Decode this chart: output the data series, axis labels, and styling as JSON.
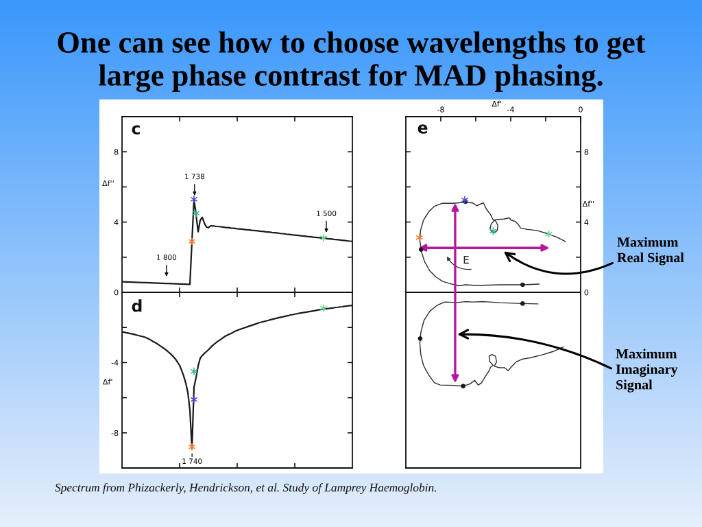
{
  "chart_data": [
    {
      "type": "line",
      "title": "One can see how to choose wavelengths to get\nlarge phase contrast for MAD phasing.",
      "ylabel": "Δf''",
      "categories": [
        null,
        null,
        null,
        null,
        null,
        null,
        null,
        null,
        null,
        null,
        null,
        null,
        null,
        null,
        null,
        null,
        null,
        null,
        null,
        null,
        null,
        null,
        null,
        null,
        null,
        null,
        null,
        null,
        null,
        null,
        null,
        null,
        null,
        null,
        null,
        null,
        null,
        null,
        null,
        null,
        null,
        null,
        null,
        null,
        null,
        null,
        null,
        null,
        null,
        null,
        null,
        null,
        null,
        null,
        null,
        null,
        null,
        null,
        null,
        null,
        null,
        null,
        null,
        null,
        null,
        null,
        null,
        null,
        null,
        null,
        null,
        null,
        null,
        null,
        null,
        null,
        null,
        null,
        null,
        null,
        null,
        null,
        null,
        null,
        null,
        null,
        null,
        null,
        null,
        null,
        null,
        null,
        null,
        null,
        null,
        null,
        null,
        null,
        null,
        null,
        null,
        null,
        null,
        null,
        null,
        null,
        null,
        null,
        null,
        null,
        null,
        null,
        null
      ],
      "ylim": [
        0,
        10
      ],
      "yticks": [
        0,
        {
          "value": 2,
          "label": null
        },
        4,
        {
          "value": 6,
          "label": null
        },
        8
      ],
      "series": [
        {
          "type": "line",
          "color": "#1a1a1a",
          "values": [
            0.6,
            0.6,
            0.59,
            0.59,
            0.58,
            0.58,
            0.57,
            0.57,
            0.56,
            0.56,
            0.55,
            0.55,
            0.55,
            0.54,
            0.54,
            0.53,
            0.53,
            0.52,
            0.52,
            0.51,
            0.51,
            0.5,
            0.5,
            0.5,
            0.49,
            0.49,
            0.48,
            0.48,
            0.47,
            0.47,
            0.46,
            0.46,
            0.45,
            0.45,
            2.9,
            5.3,
            4.4,
            3.45,
            4.1,
            4.27,
            3.95,
            3.72,
            3.68,
            3.78,
            3.78,
            3.77,
            3.75,
            3.74,
            3.73,
            3.72,
            3.7,
            3.69,
            3.68,
            3.66,
            3.65,
            3.64,
            3.62,
            3.61,
            3.6,
            3.59,
            3.57,
            3.56,
            3.55,
            3.53,
            3.52,
            3.51,
            3.5,
            3.48,
            3.47,
            3.46,
            3.44,
            3.43,
            3.42,
            3.4,
            3.39,
            3.38,
            3.37,
            3.35,
            3.34,
            3.33,
            3.31,
            3.3,
            3.29,
            3.27,
            3.26,
            3.25,
            3.24,
            3.22,
            3.21,
            3.2,
            3.18,
            3.17,
            3.16,
            3.14,
            3.13,
            3.12,
            3.11,
            3.09,
            3.08,
            3.07,
            3.05,
            3.04,
            3.03,
            3.01,
            3.0,
            2.99,
            2.98,
            2.96,
            2.95,
            2.94,
            2.92,
            2.91,
            2.9
          ]
        },
        {
          "type": "scatter",
          "marker": "cross",
          "color": "#ff7a2a",
          "values": [
            null,
            null,
            null,
            null,
            null,
            null,
            null,
            null,
            null,
            null,
            null,
            null,
            null,
            null,
            null,
            null,
            null,
            null,
            null,
            null,
            null,
            null,
            null,
            null,
            null,
            null,
            null,
            null,
            null,
            null,
            null,
            null,
            null,
            null,
            2.9,
            null,
            null,
            null,
            null,
            null,
            null,
            null,
            null,
            null,
            null,
            null,
            null,
            null,
            null,
            null,
            null,
            null,
            null,
            null,
            null,
            null,
            null,
            null,
            null,
            null,
            null,
            null,
            null,
            null,
            null,
            null,
            null,
            null,
            null,
            null,
            null,
            null,
            null,
            null,
            null,
            null,
            null,
            null,
            null,
            null,
            null,
            null,
            null,
            null,
            null,
            null,
            null,
            null,
            null,
            null,
            null,
            null,
            null,
            null,
            null,
            null,
            null,
            null,
            null,
            null,
            null,
            null,
            null,
            null,
            null,
            null,
            null,
            null,
            null,
            null,
            null,
            null,
            null
          ]
        },
        {
          "type": "scatter",
          "marker": "cross",
          "color": "#4b4bd8",
          "values": [
            null,
            null,
            null,
            null,
            null,
            null,
            null,
            null,
            null,
            null,
            null,
            null,
            null,
            null,
            null,
            null,
            null,
            null,
            null,
            null,
            null,
            null,
            null,
            null,
            null,
            null,
            null,
            null,
            null,
            null,
            null,
            null,
            null,
            null,
            null,
            5.3,
            null,
            null,
            null,
            null,
            null,
            null,
            null,
            null,
            null,
            null,
            null,
            null,
            null,
            null,
            null,
            null,
            null,
            null,
            null,
            null,
            null,
            null,
            null,
            null,
            null,
            null,
            null,
            null,
            null,
            null,
            null,
            null,
            null,
            null,
            null,
            null,
            null,
            null,
            null,
            null,
            null,
            null,
            null,
            null,
            null,
            null,
            null,
            null,
            null,
            null,
            null,
            null,
            null,
            null,
            null,
            null,
            null,
            null,
            null,
            null,
            null,
            null,
            null,
            null,
            null,
            null,
            null,
            null,
            null,
            null,
            null,
            null,
            null,
            null,
            null,
            null,
            null
          ]
        },
        {
          "type": "scatter",
          "marker": "cross",
          "color": "#2eb87c",
          "values": [
            null,
            null,
            null,
            null,
            null,
            null,
            null,
            null,
            null,
            null,
            null,
            null,
            null,
            null,
            null,
            null,
            null,
            null,
            null,
            null,
            null,
            null,
            null,
            null,
            null,
            null,
            null,
            null,
            null,
            null,
            null,
            null,
            null,
            null,
            null,
            null,
            4.5,
            null,
            null,
            null,
            null,
            null,
            null,
            null,
            null,
            null,
            null,
            null,
            null,
            null,
            null,
            null,
            null,
            null,
            null,
            null,
            null,
            null,
            null,
            null,
            null,
            null,
            null,
            null,
            null,
            null,
            null,
            null,
            null,
            null,
            null,
            null,
            null,
            null,
            null,
            null,
            null,
            null,
            null,
            null,
            null,
            null,
            null,
            null,
            null,
            null,
            null,
            null,
            null,
            null,
            null,
            null,
            null,
            null,
            null,
            null,
            null,
            null,
            null,
            null,
            null,
            null,
            null,
            null,
            null,
            null,
            null,
            null,
            null,
            null,
            null,
            null,
            null
          ]
        },
        {
          "type": "scatter",
          "marker": "cross",
          "color": "#5fd890",
          "values": [
            null,
            null,
            null,
            null,
            null,
            null,
            null,
            null,
            null,
            null,
            null,
            null,
            null,
            null,
            null,
            null,
            null,
            null,
            null,
            null,
            null,
            null,
            null,
            null,
            null,
            null,
            null,
            null,
            null,
            null,
            null,
            null,
            null,
            null,
            null,
            null,
            null,
            null,
            null,
            null,
            null,
            null,
            null,
            null,
            null,
            null,
            null,
            null,
            null,
            null,
            null,
            null,
            null,
            null,
            null,
            null,
            null,
            null,
            null,
            null,
            null,
            null,
            null,
            null,
            null,
            null,
            null,
            null,
            null,
            null,
            null,
            null,
            null,
            null,
            null,
            null,
            null,
            null,
            null,
            null,
            null,
            null,
            null,
            null,
            null,
            null,
            null,
            null,
            null,
            null,
            null,
            null,
            null,
            null,
            null,
            null,
            null,
            null,
            3.1,
            null,
            null,
            null,
            null,
            null,
            null,
            null,
            null,
            null,
            null,
            null,
            null,
            null,
            null
          ]
        }
      ],
      "annotations": [
        "c",
        "1 800",
        {
          "text": "1 738",
          "y": 5.5
        },
        {
          "text": "1 500",
          "y": 3.4
        }
      ]
    },
    {
      "type": "line",
      "ylabel": "Δf'",
      "categories": [
        null,
        null,
        null,
        null,
        null,
        null,
        null,
        null,
        null,
        null,
        null,
        null,
        null,
        null,
        null,
        null,
        null,
        null,
        null,
        null,
        null,
        null,
        null,
        null,
        null,
        null,
        null,
        null,
        null,
        null,
        null,
        null,
        null,
        null,
        null,
        null,
        null,
        null,
        null,
        null,
        null,
        null,
        null,
        null,
        null,
        null,
        null,
        null,
        null,
        null,
        null,
        null,
        null,
        null,
        null,
        null,
        null,
        null,
        null,
        null,
        null,
        null,
        null,
        null,
        null,
        null,
        null,
        null,
        null,
        null,
        null,
        null,
        null,
        null,
        null,
        null,
        null,
        null,
        null,
        null,
        null,
        null,
        null,
        null,
        null,
        null,
        null,
        null,
        null,
        null,
        null,
        null,
        null,
        null,
        null,
        null,
        null,
        null,
        null,
        null,
        null,
        null,
        null,
        null,
        null,
        null,
        null,
        null,
        null,
        null,
        null,
        null,
        null
      ],
      "ylim": [
        -10,
        0
      ],
      "yticks": [
        {
          "value": -2,
          "label": null
        },
        -4,
        {
          "value": -6,
          "label": null
        },
        -8
      ],
      "series": [
        {
          "type": "line",
          "color": "#1a1a1a",
          "values": [
            -2.25,
            -2.27,
            -2.3,
            -2.32,
            -2.35,
            -2.37,
            -2.4,
            -2.43,
            -2.46,
            -2.49,
            -2.52,
            -2.55,
            -2.6,
            -2.66,
            -2.72,
            -2.79,
            -2.85,
            -2.92,
            -3.0,
            -3.08,
            -3.16,
            -3.25,
            -3.34,
            -3.44,
            -3.55,
            -3.67,
            -3.8,
            -3.98,
            -4.16,
            -4.45,
            -4.77,
            -5.17,
            -5.7,
            -6.7,
            -8.9,
            -5.4,
            -4.85,
            -4.2,
            -3.75,
            -3.6,
            -3.48,
            -3.38,
            -3.27,
            -3.15,
            -3.03,
            -2.93,
            -2.84,
            -2.76,
            -2.68,
            -2.59,
            -2.51,
            -2.45,
            -2.39,
            -2.34,
            -2.28,
            -2.22,
            -2.17,
            -2.12,
            -2.08,
            -2.04,
            -2.0,
            -1.96,
            -1.92,
            -1.88,
            -1.84,
            -1.8,
            -1.76,
            -1.72,
            -1.69,
            -1.66,
            -1.63,
            -1.6,
            -1.57,
            -1.54,
            -1.51,
            -1.48,
            -1.45,
            -1.42,
            -1.4,
            -1.37,
            -1.34,
            -1.32,
            -1.29,
            -1.27,
            -1.24,
            -1.22,
            -1.2,
            -1.18,
            -1.16,
            -1.14,
            -1.12,
            -1.1,
            -1.08,
            -1.06,
            -1.04,
            -1.01,
            -0.99,
            -0.97,
            -0.95,
            -0.94,
            -0.92,
            -0.91,
            -0.89,
            -0.88,
            -0.86,
            -0.85,
            -0.83,
            -0.82,
            -0.8,
            -0.79,
            -0.77,
            -0.76,
            -0.75
          ]
        },
        {
          "type": "scatter",
          "marker": "cross",
          "color": "#ff7a2a",
          "values": [
            null,
            null,
            null,
            null,
            null,
            null,
            null,
            null,
            null,
            null,
            null,
            null,
            null,
            null,
            null,
            null,
            null,
            null,
            null,
            null,
            null,
            null,
            null,
            null,
            null,
            null,
            null,
            null,
            null,
            null,
            null,
            null,
            null,
            null,
            -8.8,
            null,
            null,
            null,
            null,
            null,
            null,
            null,
            null,
            null,
            null,
            null,
            null,
            null,
            null,
            null,
            null,
            null,
            null,
            null,
            null,
            null,
            null,
            null,
            null,
            null,
            null,
            null,
            null,
            null,
            null,
            null,
            null,
            null,
            null,
            null,
            null,
            null,
            null,
            null,
            null,
            null,
            null,
            null,
            null,
            null,
            null,
            null,
            null,
            null,
            null,
            null,
            null,
            null,
            null,
            null,
            null,
            null,
            null,
            null,
            null,
            null,
            null,
            null,
            null,
            null,
            null,
            null,
            null,
            null,
            null,
            null,
            null,
            null,
            null,
            null,
            null,
            null,
            null
          ]
        },
        {
          "type": "scatter",
          "marker": "cross",
          "color": "#4b4bd8",
          "values": [
            null,
            null,
            null,
            null,
            null,
            null,
            null,
            null,
            null,
            null,
            null,
            null,
            null,
            null,
            null,
            null,
            null,
            null,
            null,
            null,
            null,
            null,
            null,
            null,
            null,
            null,
            null,
            null,
            null,
            null,
            null,
            null,
            null,
            null,
            null,
            -6.1,
            null,
            null,
            null,
            null,
            null,
            null,
            null,
            null,
            null,
            null,
            null,
            null,
            null,
            null,
            null,
            null,
            null,
            null,
            null,
            null,
            null,
            null,
            null,
            null,
            null,
            null,
            null,
            null,
            null,
            null,
            null,
            null,
            null,
            null,
            null,
            null,
            null,
            null,
            null,
            null,
            null,
            null,
            null,
            null,
            null,
            null,
            null,
            null,
            null,
            null,
            null,
            null,
            null,
            null,
            null,
            null,
            null,
            null,
            null,
            null,
            null,
            null,
            null,
            null,
            null,
            null,
            null,
            null,
            null,
            null,
            null,
            null,
            null,
            null,
            null,
            null,
            null
          ]
        },
        {
          "type": "scatter",
          "marker": "cross",
          "color": "#2eb87c",
          "values": [
            null,
            null,
            null,
            null,
            null,
            null,
            null,
            null,
            null,
            null,
            null,
            null,
            null,
            null,
            null,
            null,
            null,
            null,
            null,
            null,
            null,
            null,
            null,
            null,
            null,
            null,
            null,
            null,
            null,
            null,
            null,
            null,
            null,
            null,
            null,
            -4.5,
            null,
            null,
            null,
            null,
            null,
            null,
            null,
            null,
            null,
            null,
            null,
            null,
            null,
            null,
            null,
            null,
            null,
            null,
            null,
            null,
            null,
            null,
            null,
            null,
            null,
            null,
            null,
            null,
            null,
            null,
            null,
            null,
            null,
            null,
            null,
            null,
            null,
            null,
            null,
            null,
            null,
            null,
            null,
            null,
            null,
            null,
            null,
            null,
            null,
            null,
            null,
            null,
            null,
            null,
            null,
            null,
            null,
            null,
            null,
            null,
            null,
            null,
            null,
            null,
            null,
            null,
            null,
            null,
            null,
            null,
            null,
            null,
            null,
            null,
            null,
            null,
            null
          ]
        },
        {
          "type": "scatter",
          "marker": "cross",
          "color": "#5fd890",
          "values": [
            null,
            null,
            null,
            null,
            null,
            null,
            null,
            null,
            null,
            null,
            null,
            null,
            null,
            null,
            null,
            null,
            null,
            null,
            null,
            null,
            null,
            null,
            null,
            null,
            null,
            null,
            null,
            null,
            null,
            null,
            null,
            null,
            null,
            null,
            null,
            null,
            null,
            null,
            null,
            null,
            null,
            null,
            null,
            null,
            null,
            null,
            null,
            null,
            null,
            null,
            null,
            null,
            null,
            null,
            null,
            null,
            null,
            null,
            null,
            null,
            null,
            null,
            null,
            null,
            null,
            null,
            null,
            null,
            null,
            null,
            null,
            null,
            null,
            null,
            null,
            null,
            null,
            null,
            null,
            null,
            null,
            null,
            null,
            null,
            null,
            null,
            null,
            null,
            null,
            null,
            null,
            null,
            null,
            null,
            null,
            null,
            null,
            null,
            -0.9,
            null,
            null,
            null,
            null,
            null,
            null,
            null,
            null,
            null,
            null,
            null,
            null,
            null,
            null
          ]
        }
      ],
      "annotations": [
        "d",
        "1 740",
        "Spectrum from Phizackerly, Hendrickson, et al. Study of Lamprey Haemoglobin."
      ]
    },
    {
      "type": "line",
      "xlabel": "Δf'",
      "xlim": [
        -10,
        0
      ],
      "xticks": [
        -8,
        {
          "value": -6,
          "label": null
        },
        -4,
        {
          "value": -2,
          "label": null
        },
        0
      ],
      "ylabel": "Δf''",
      "ylim": [
        -10,
        10
      ],
      "yticks": [
        0,
        {
          "value": 2,
          "label": null
        },
        4,
        {
          "value": 6,
          "label": null
        },
        8
      ],
      "series": [
        {
          "type": "line",
          "color": "#2a2a2a",
          "x": [
            -2.37,
            -3.32,
            -4.61,
            -5.93,
            -6.59,
            -6.98,
            -7.51,
            -7.91,
            -8.3,
            -8.63,
            -8.93,
            -9.12,
            -9.2,
            -9.16,
            -8.99,
            -8.7,
            -8.37,
            -7.91,
            -7.25,
            -6.59,
            -6.19,
            -5.93,
            -5.73,
            -5.56,
            -5.4,
            -5.27,
            -5.16,
            -5.03,
            -4.94,
            -5.11,
            -5.18,
            -5.11,
            -4.94,
            -4.77,
            -4.74,
            -4.85,
            -4.94,
            -4.74,
            -4.41,
            -4.08,
            -3.98,
            -3.75,
            -3.56,
            -3.43,
            -3.03,
            -2.5,
            -1.84,
            -1.32,
            -0.86
          ],
          "values": [
            0.47,
            0.43,
            0.43,
            0.39,
            0.43,
            0.37,
            0.5,
            0.63,
            0.89,
            1.22,
            1.75,
            2.34,
            2.99,
            3.52,
            4.11,
            4.57,
            4.9,
            5.07,
            5.07,
            5.13,
            5.09,
            4.93,
            5.03,
            5.09,
            4.76,
            4.57,
            4.44,
            4.17,
            4.07,
            3.91,
            3.65,
            3.45,
            3.39,
            3.52,
            3.81,
            4.04,
            4.11,
            4.15,
            4.17,
            4.24,
            4.11,
            4.04,
            3.85,
            3.65,
            3.58,
            3.52,
            3.32,
            3.12,
            2.89
          ]
        },
        {
          "type": "line",
          "color": "#2a2a2a",
          "x": [
            -2.44,
            -3.32,
            -4.61,
            -5.53,
            -6.19,
            -6.59,
            -7.11,
            -7.77,
            -8.23,
            -8.63,
            -8.96,
            -9.14,
            -9.2,
            -9.14,
            -8.99,
            -8.7,
            -8.37,
            -8.04,
            -7.25,
            -6.72,
            -6.32,
            -6.06,
            -5.86,
            -5.67,
            -5.47,
            -5.27,
            -5.14,
            -5.01,
            -5.2,
            -5.24,
            -5.07,
            -4.87,
            -4.81,
            -4.94,
            -4.68,
            -4.35,
            -4.15,
            -3.95,
            -3.69,
            -3.36,
            -2.9,
            -2.24,
            -1.58,
            -0.99
          ],
          "values": [
            -0.66,
            -0.64,
            -0.59,
            -0.53,
            -0.55,
            -0.53,
            -0.58,
            -0.55,
            -0.75,
            -1.08,
            -1.6,
            -2.26,
            -2.92,
            -3.57,
            -4.16,
            -4.69,
            -5.14,
            -5.28,
            -5.3,
            -5.34,
            -5.21,
            -5.01,
            -5.28,
            -5.15,
            -4.82,
            -4.52,
            -4.25,
            -4.16,
            -3.94,
            -3.64,
            -3.54,
            -3.64,
            -3.96,
            -4.2,
            -4.29,
            -4.29,
            -4.46,
            -4.23,
            -3.96,
            -3.81,
            -3.73,
            -3.57,
            -3.37,
            -3.11
          ]
        },
        {
          "type": "scatter",
          "marker": "circle",
          "color": "#1a1a1a",
          "x": [
            -3.32,
            -9.13,
            -6.59,
            -3.32,
            -9.18,
            -6.72
          ],
          "values": [
            0.43,
            2.44,
            5.16,
            -0.64,
            -2.63,
            -5.34
          ]
        },
        {
          "type": "scatter",
          "marker": "cross",
          "color": "#4b4bd8",
          "x": [
            -6.63
          ],
          "values": [
            5.26
          ]
        },
        {
          "type": "scatter",
          "marker": "cross",
          "color": "#ff7a2a",
          "x": [
            -9.22
          ],
          "values": [
            3.12
          ]
        },
        {
          "type": "scatter",
          "marker": "cross",
          "color": "#2eb87c",
          "x": [
            -5.01
          ],
          "values": [
            3.48
          ]
        },
        {
          "type": "scatter",
          "marker": "cross",
          "color": "#5fd890",
          "x": [
            -1.82
          ],
          "values": [
            3.32
          ]
        }
      ],
      "ref_lines": [
        {
          "axis": "y",
          "value": 0,
          "color": "#111111"
        }
      ],
      "annotations": [
        "e",
        "E",
        "Maximum\nReal Signal",
        "Maximum\nImaginary\nSignal"
      ]
    }
  ]
}
